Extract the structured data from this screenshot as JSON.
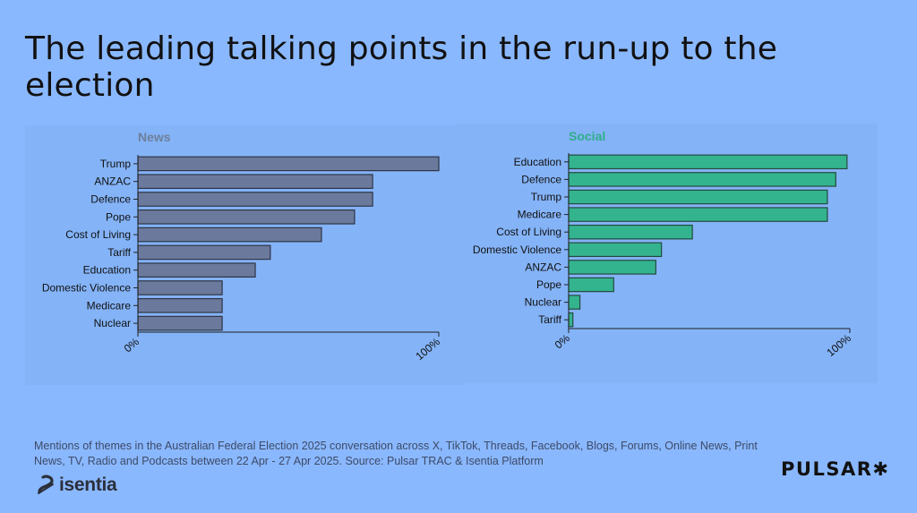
{
  "page": {
    "title": "The leading talking points in the run-up to the election",
    "footnote": "Mentions of themes in the Australian Federal Election 2025 conversation across X, TikTok, Threads, Facebook, Blogs, Forums, Online News, Print News, TV, Radio and Podcasts between 22 Apr - 27 Apr 2025. Source: Pulsar TRAC & Isentia Platform",
    "logo_left": "isentia",
    "logo_right": "PULSAR",
    "logo_right_mark": "✱"
  },
  "chart_data": [
    {
      "type": "bar",
      "orientation": "horizontal",
      "title": "News",
      "title_color": "#6f7f9c",
      "bar_color": "#6b7a9c",
      "bar_border": "#2e3445",
      "categories": [
        "Trump",
        "ANZAC",
        "Defence",
        "Pope",
        "Cost of Living",
        "Tariff",
        "Education",
        "Domestic Violence",
        "Medicare",
        "Nuclear"
      ],
      "values": [
        100,
        78,
        78,
        72,
        61,
        44,
        39,
        28,
        28,
        28
      ],
      "xlim": [
        0,
        100
      ],
      "x_ticks": [
        "0%",
        "100%"
      ],
      "grid": false
    },
    {
      "type": "bar",
      "orientation": "horizontal",
      "title": "Social",
      "title_color": "#2fae8c",
      "bar_color": "#34b48e",
      "bar_border": "#234a3f",
      "categories": [
        "Education",
        "Defence",
        "Trump",
        "Medicare",
        "Cost of Living",
        "Domestic Violence",
        "ANZAC",
        "Pope",
        "Nuclear",
        "Tariff"
      ],
      "values": [
        99,
        95,
        92,
        92,
        44,
        33,
        31,
        16,
        4,
        1.5
      ],
      "xlim": [
        0,
        100
      ],
      "x_ticks": [
        "0%",
        "100%"
      ],
      "grid": false
    }
  ]
}
